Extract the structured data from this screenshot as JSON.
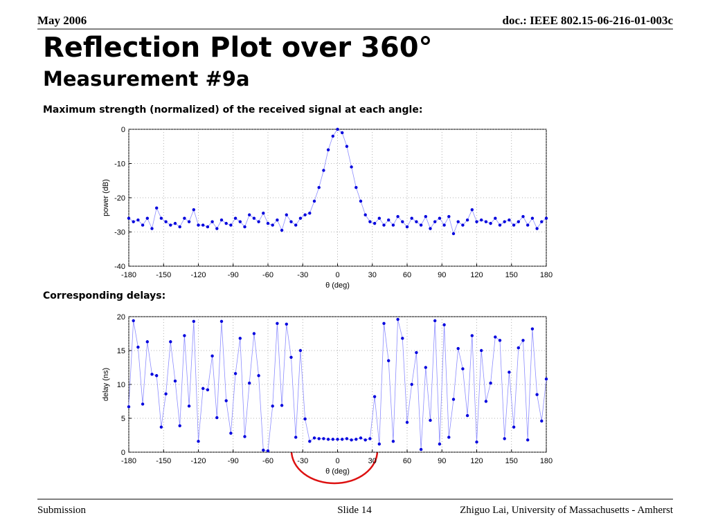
{
  "header": {
    "date": "May 2006",
    "doc": "doc.: IEEE 802.15-06-216-01-003c",
    "title": "Reflection Plot over 360°",
    "subtitle": "Measurement #9a"
  },
  "captions": [
    "Maximum strength (normalized) of the received signal at each angle:",
    "Corresponding delays:"
  ],
  "footer": {
    "left": "Submission",
    "center": "Slide 14",
    "right": "Zhiguo Lai, University of Massachusetts - Amherst"
  },
  "chart_data": [
    {
      "type": "line",
      "xlabel": "θ (deg)",
      "ylabel": "power (dB)",
      "color": "#0000dd",
      "line_color": "#8c8cff",
      "grid": true,
      "xlim": [
        -180,
        180
      ],
      "xticks": [
        -180,
        -150,
        -120,
        -90,
        -60,
        -30,
        0,
        30,
        60,
        90,
        120,
        150,
        180
      ],
      "ylim": [
        -40,
        0
      ],
      "yticks": [
        0,
        -10,
        -20,
        -30,
        -40
      ],
      "x": [
        -180,
        -176,
        -172,
        -168,
        -164,
        -160,
        -156,
        -152,
        -148,
        -144,
        -140,
        -136,
        -132,
        -128,
        -124,
        -120,
        -116,
        -112,
        -108,
        -104,
        -100,
        -96,
        -92,
        -88,
        -84,
        -80,
        -76,
        -72,
        -68,
        -64,
        -60,
        -56,
        -52,
        -48,
        -44,
        -40,
        -36,
        -32,
        -28,
        -24,
        -20,
        -16,
        -12,
        -8,
        -4,
        0,
        4,
        8,
        12,
        16,
        20,
        24,
        28,
        32,
        36,
        40,
        44,
        48,
        52,
        56,
        60,
        64,
        68,
        72,
        76,
        80,
        84,
        88,
        92,
        96,
        100,
        104,
        108,
        112,
        116,
        120,
        124,
        128,
        132,
        136,
        140,
        144,
        148,
        152,
        156,
        160,
        164,
        168,
        172,
        176,
        180
      ],
      "values": [
        -26,
        -27,
        -26.5,
        -28,
        -26,
        -29,
        -23,
        -26,
        -27,
        -28,
        -27.5,
        -28.5,
        -26,
        -27,
        -23.5,
        -28,
        -28,
        -28.5,
        -27,
        -29,
        -26.5,
        -27.5,
        -28,
        -26,
        -27,
        -28.5,
        -25,
        -26,
        -27,
        -24.5,
        -27.5,
        -28,
        -26.5,
        -29.5,
        -25,
        -27,
        -28,
        -26,
        -25,
        -24.5,
        -21,
        -17,
        -12,
        -6,
        -2,
        0,
        -1,
        -5,
        -11,
        -17,
        -21,
        -25,
        -27,
        -27.5,
        -26,
        -28,
        -26.5,
        -28,
        -25.5,
        -27,
        -28.5,
        -26,
        -27,
        -28,
        -25.5,
        -29,
        -27,
        -26,
        -28,
        -25.5,
        -30.5,
        -27,
        -28,
        -26.5,
        -23.5,
        -27,
        -26.5,
        -27,
        -27.5,
        -26,
        -28,
        -27,
        -26.5,
        -28,
        -27,
        -25.5,
        -28,
        -26,
        -29,
        -27,
        -26
      ]
    },
    {
      "type": "line",
      "xlabel": "θ (deg)",
      "ylabel": "delay (ns)",
      "color": "#0000dd",
      "line_color": "#8c8cff",
      "grid": true,
      "xlim": [
        -180,
        180
      ],
      "xticks": [
        -180,
        -150,
        -120,
        -90,
        -60,
        -30,
        0,
        30,
        60,
        90,
        120,
        150,
        180
      ],
      "ylim": [
        0,
        20
      ],
      "yticks": [
        0,
        5,
        10,
        15,
        20
      ],
      "x": [
        -180,
        -176,
        -172,
        -168,
        -164,
        -160,
        -156,
        -152,
        -148,
        -144,
        -140,
        -136,
        -132,
        -128,
        -124,
        -120,
        -116,
        -112,
        -108,
        -104,
        -100,
        -96,
        -92,
        -88,
        -84,
        -80,
        -76,
        -72,
        -68,
        -64,
        -60,
        -56,
        -52,
        -48,
        -44,
        -40,
        -36,
        -32,
        -28,
        -24,
        -20,
        -16,
        -12,
        -8,
        -4,
        0,
        4,
        8,
        12,
        16,
        20,
        24,
        28,
        32,
        36,
        40,
        44,
        48,
        52,
        56,
        60,
        64,
        68,
        72,
        76,
        80,
        84,
        88,
        92,
        96,
        100,
        104,
        108,
        112,
        116,
        120,
        124,
        128,
        132,
        136,
        140,
        144,
        148,
        152,
        156,
        160,
        164,
        168,
        172,
        176,
        180
      ],
      "values": [
        6.7,
        19.4,
        15.5,
        7.1,
        16.3,
        11.5,
        11.3,
        3.7,
        8.6,
        16.3,
        10.5,
        3.9,
        17.2,
        6.8,
        19.3,
        1.6,
        9.4,
        9.2,
        14.2,
        5.1,
        19.3,
        7.6,
        2.8,
        11.6,
        16.8,
        2.3,
        10.2,
        17.5,
        11.3,
        0.3,
        0.2,
        6.8,
        19.0,
        6.9,
        18.9,
        14.0,
        2.2,
        15.0,
        4.9,
        1.6,
        2.1,
        2.0,
        2.0,
        1.9,
        1.9,
        1.9,
        1.9,
        2.0,
        1.8,
        1.9,
        2.1,
        1.8,
        2.0,
        8.2,
        1.2,
        19.0,
        13.5,
        1.6,
        19.6,
        16.8,
        4.4,
        10.0,
        14.7,
        0.4,
        12.5,
        4.7,
        19.4,
        1.2,
        18.8,
        2.2,
        7.8,
        15.3,
        12.3,
        5.4,
        17.2,
        1.5,
        15.0,
        7.5,
        10.2,
        17.0,
        16.5,
        2.0,
        11.8,
        3.7,
        15.4,
        16.5,
        1.8,
        18.2,
        8.5,
        4.6,
        10.8
      ]
    }
  ]
}
